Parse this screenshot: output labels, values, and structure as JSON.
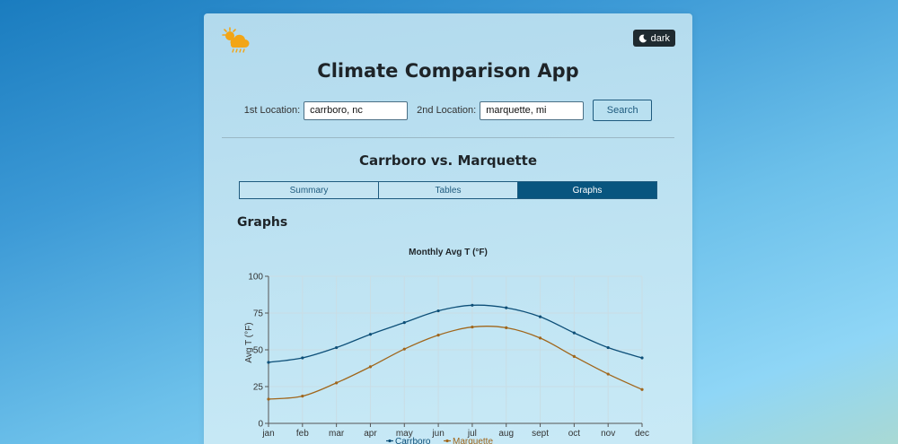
{
  "app": {
    "title": "Climate Comparison App",
    "theme_toggle_label": "dark"
  },
  "search": {
    "first_label": "1st Location:",
    "first_value": "carrboro, nc",
    "second_label": "2nd Location:",
    "second_value": "marquette, mi",
    "button_label": "Search"
  },
  "comparison": {
    "title": "Carrboro vs. Marquette",
    "tabs": [
      {
        "label": "Summary",
        "active": false
      },
      {
        "label": "Tables",
        "active": false
      },
      {
        "label": "Graphs",
        "active": true
      }
    ],
    "section_heading": "Graphs"
  },
  "colors": {
    "accent": "#08557f",
    "series_1": "#0d4f78",
    "series_2": "#a0661b"
  },
  "chart_data": {
    "type": "line",
    "title": "Monthly Avg T (°F)",
    "ylabel": "Avg T (°F)",
    "xlabel": "",
    "categories": [
      "jan",
      "feb",
      "mar",
      "apr",
      "may",
      "jun",
      "jul",
      "aug",
      "sept",
      "oct",
      "nov",
      "dec"
    ],
    "ylim": [
      0,
      100
    ],
    "yticks": [
      0,
      25,
      50,
      75,
      100
    ],
    "grid": true,
    "legend": "bottom",
    "series": [
      {
        "name": "Carrboro",
        "color": "#0d4f78",
        "values": [
          41.5,
          44.5,
          51.5,
          60.5,
          68.5,
          76.5,
          80.3,
          78.6,
          72.5,
          61.5,
          51.5,
          44.5
        ]
      },
      {
        "name": "Marquette",
        "color": "#a0661b",
        "values": [
          16.5,
          18.5,
          27.5,
          38.5,
          50.5,
          60.0,
          65.5,
          65.0,
          58.0,
          45.5,
          33.5,
          23.0
        ]
      }
    ]
  }
}
